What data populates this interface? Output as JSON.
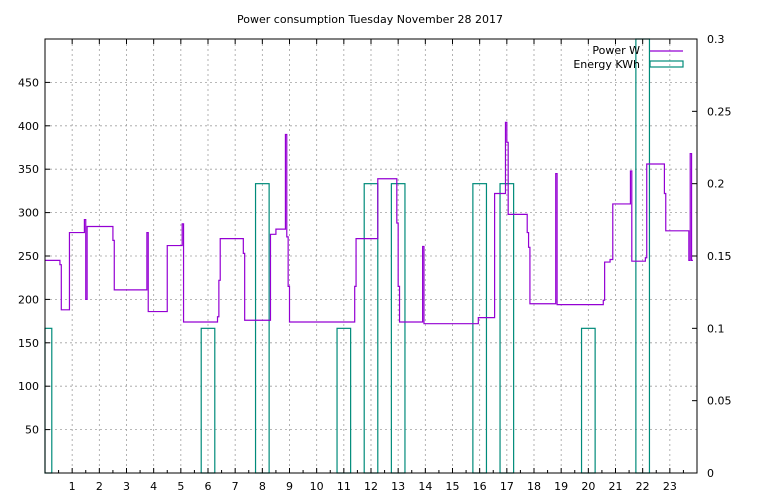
{
  "chart_data": {
    "type": "line",
    "title": "Power consumption Tuesday November 28 2017",
    "x_ticks": [
      1,
      2,
      3,
      4,
      5,
      6,
      7,
      8,
      9,
      10,
      11,
      12,
      13,
      14,
      15,
      16,
      17,
      18,
      19,
      20,
      21,
      22,
      23
    ],
    "xlim": [
      0,
      24
    ],
    "y1lim": [
      0,
      500
    ],
    "y1_ticks": [
      50,
      100,
      150,
      200,
      250,
      300,
      350,
      400,
      450
    ],
    "y2lim": [
      0,
      0.3
    ],
    "y2_ticks": [
      "0",
      "0.05",
      "0.1",
      "0.15",
      "0.2",
      "0.25",
      "0.3"
    ],
    "legend_position": "top-right",
    "grid": true,
    "series": [
      {
        "name": "Power W",
        "axis": "y1",
        "style": "steps",
        "color": "#9400d3",
        "points": [
          [
            0,
            245
          ],
          [
            0.55,
            245
          ],
          [
            0.55,
            240
          ],
          [
            0.6,
            240
          ],
          [
            0.6,
            188
          ],
          [
            0.9,
            188
          ],
          [
            0.9,
            277
          ],
          [
            1.45,
            277
          ],
          [
            1.45,
            292
          ],
          [
            1.5,
            292
          ],
          [
            1.5,
            200
          ],
          [
            1.55,
            200
          ],
          [
            1.55,
            284
          ],
          [
            2.5,
            284
          ],
          [
            2.5,
            268
          ],
          [
            2.55,
            268
          ],
          [
            2.55,
            211
          ],
          [
            3.75,
            211
          ],
          [
            3.75,
            277
          ],
          [
            3.8,
            277
          ],
          [
            3.8,
            186
          ],
          [
            4.5,
            186
          ],
          [
            4.5,
            262
          ],
          [
            5.05,
            262
          ],
          [
            5.05,
            287
          ],
          [
            5.1,
            287
          ],
          [
            5.1,
            174
          ],
          [
            6.35,
            174
          ],
          [
            6.35,
            180
          ],
          [
            6.4,
            180
          ],
          [
            6.4,
            222
          ],
          [
            6.45,
            222
          ],
          [
            6.45,
            270
          ],
          [
            7.3,
            270
          ],
          [
            7.3,
            253
          ],
          [
            7.35,
            253
          ],
          [
            7.35,
            176
          ],
          [
            8.3,
            176
          ],
          [
            8.3,
            275
          ],
          [
            8.5,
            275
          ],
          [
            8.5,
            281
          ],
          [
            8.85,
            281
          ],
          [
            8.85,
            390
          ],
          [
            8.9,
            390
          ],
          [
            8.9,
            272
          ],
          [
            8.95,
            272
          ],
          [
            8.95,
            215
          ],
          [
            9.0,
            215
          ],
          [
            9.0,
            174
          ],
          [
            11.4,
            174
          ],
          [
            11.4,
            215
          ],
          [
            11.45,
            215
          ],
          [
            11.45,
            270
          ],
          [
            12.25,
            270
          ],
          [
            12.25,
            339
          ],
          [
            12.95,
            339
          ],
          [
            12.95,
            288
          ],
          [
            13.0,
            288
          ],
          [
            13.0,
            215
          ],
          [
            13.05,
            215
          ],
          [
            13.05,
            174
          ],
          [
            13.9,
            174
          ],
          [
            13.9,
            261
          ],
          [
            13.95,
            261
          ],
          [
            13.95,
            172
          ],
          [
            15.95,
            172
          ],
          [
            15.95,
            179
          ],
          [
            16.55,
            179
          ],
          [
            16.55,
            322
          ],
          [
            16.95,
            322
          ],
          [
            16.95,
            404
          ],
          [
            17.0,
            404
          ],
          [
            17.0,
            381
          ],
          [
            17.05,
            381
          ],
          [
            17.05,
            298
          ],
          [
            17.75,
            298
          ],
          [
            17.75,
            277
          ],
          [
            17.8,
            277
          ],
          [
            17.8,
            260
          ],
          [
            17.85,
            260
          ],
          [
            17.85,
            195
          ],
          [
            18.8,
            195
          ],
          [
            18.8,
            345
          ],
          [
            18.85,
            345
          ],
          [
            18.85,
            194
          ],
          [
            20.55,
            194
          ],
          [
            20.55,
            199
          ],
          [
            20.6,
            199
          ],
          [
            20.6,
            243
          ],
          [
            20.8,
            243
          ],
          [
            20.8,
            246
          ],
          [
            20.9,
            246
          ],
          [
            20.9,
            310
          ],
          [
            21.55,
            310
          ],
          [
            21.55,
            348
          ],
          [
            21.6,
            348
          ],
          [
            21.6,
            244
          ],
          [
            22.1,
            244
          ],
          [
            22.1,
            248
          ],
          [
            22.15,
            248
          ],
          [
            22.15,
            356
          ],
          [
            22.8,
            356
          ],
          [
            22.8,
            322
          ],
          [
            22.85,
            322
          ],
          [
            22.85,
            279
          ],
          [
            23.7,
            279
          ],
          [
            23.7,
            245
          ],
          [
            23.75,
            245
          ],
          [
            23.75,
            368
          ],
          [
            23.8,
            368
          ],
          [
            23.8,
            245
          ],
          [
            23.85,
            245
          ]
        ]
      },
      {
        "name": "Energy KWh",
        "axis": "y2",
        "style": "boxes",
        "color": "#008b7a",
        "bars": [
          [
            0.0,
            0.25,
            0.1
          ],
          [
            5.75,
            6.25,
            0.1
          ],
          [
            7.75,
            8.25,
            0.2
          ],
          [
            10.75,
            11.25,
            0.1
          ],
          [
            11.75,
            12.25,
            0.2
          ],
          [
            12.75,
            13.25,
            0.2
          ],
          [
            15.75,
            16.25,
            0.2
          ],
          [
            16.75,
            17.25,
            0.2
          ],
          [
            19.75,
            20.25,
            0.1
          ],
          [
            21.75,
            22.25,
            0.3
          ]
        ]
      }
    ]
  }
}
